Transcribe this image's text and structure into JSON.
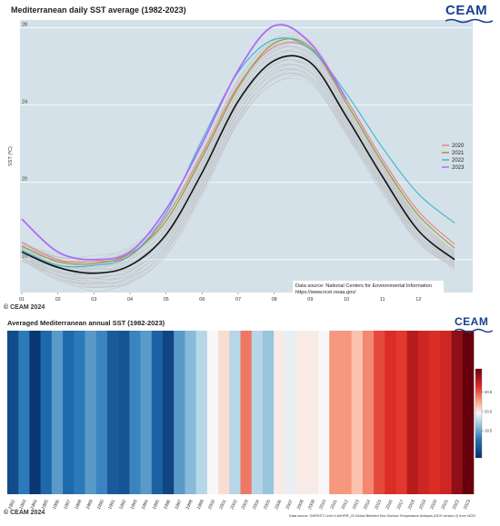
{
  "top_chart": {
    "title": "Mediterranean daily SST average (1982-2023)",
    "logo": "CEAM",
    "copyright": "© CEAM 2024",
    "source_line1": "Data source: National Centers for Environmental Information",
    "source_line2": "https://www.ncei.noaa.gov/"
  },
  "bottom_chart": {
    "title": "Averaged Mediterranean annual SST (1982-2023)",
    "logo": "CEAM",
    "copyright": "© CEAM 2024",
    "source": "Data source: GHRSST Level 4 AVHRR_OI Global Blended Sea Surface Temperature Analysis (GDS version 2) from NCEI"
  },
  "colors": {
    "avg_line": "#111111",
    "clim_lines": "#b8b8b8",
    "plot_bg": "#d4e1e9",
    "frame_bg": "#ffffff"
  },
  "chart_data": [
    {
      "type": "line",
      "title": "Mediterranean daily SST average (1982-2023)",
      "xlabel": "",
      "ylabel": "SST (ºC)",
      "x_ticks": [
        "01",
        "02",
        "03",
        "04",
        "05",
        "06",
        "07",
        "08",
        "09",
        "10",
        "11",
        "12"
      ],
      "y_ticks": [
        16,
        20,
        24,
        28
      ],
      "ylim": [
        14.3,
        28.4
      ],
      "grid": true,
      "legend_position": "right",
      "months": [
        1,
        2,
        3,
        4,
        5,
        6,
        7,
        8,
        9,
        10,
        11,
        12,
        13
      ],
      "series": [
        {
          "name": "",
          "role": "average",
          "color": "#111111",
          "values": [
            16.4,
            15.6,
            15.3,
            15.7,
            17.3,
            20.5,
            24.2,
            26.3,
            26.2,
            23.4,
            20.3,
            17.5,
            16.0
          ]
        },
        {
          "name": "2020",
          "color": "#e6828c",
          "values": [
            16.9,
            16.0,
            15.9,
            16.2,
            18.2,
            21.5,
            25.0,
            27.0,
            26.9,
            24.3,
            21.2,
            18.5,
            16.8
          ]
        },
        {
          "name": "2021",
          "color": "#9a9a28",
          "values": [
            16.7,
            15.9,
            15.8,
            16.3,
            18.0,
            21.3,
            24.9,
            27.2,
            27.0,
            24.1,
            21.0,
            18.3,
            16.6
          ]
        },
        {
          "name": "2022",
          "color": "#3ab4cc",
          "values": [
            16.5,
            15.7,
            15.7,
            16.2,
            18.4,
            22.2,
            25.7,
            27.4,
            26.9,
            24.6,
            21.8,
            19.4,
            17.9
          ]
        },
        {
          "name": "2023",
          "color": "#b06cf5",
          "values": [
            18.1,
            16.4,
            16.0,
            16.4,
            18.6,
            22.0,
            25.8,
            28.1,
            27.2,
            24.3,
            null,
            null,
            null
          ]
        }
      ],
      "climatology_member_count": 36
    },
    {
      "type": "heatmap",
      "title": "Averaged Mediterranean annual SST (1982-2023)",
      "xlabel": "",
      "ylabel": "",
      "categories": [
        "1982",
        "1983",
        "1984",
        "1985",
        "1986",
        "1987",
        "1988",
        "1989",
        "1990",
        "1991",
        "1992",
        "1993",
        "1994",
        "1995",
        "1996",
        "1997",
        "1998",
        "1999",
        "2000",
        "2001",
        "2002",
        "2003",
        "2004",
        "2005",
        "2006",
        "2007",
        "2008",
        "2009",
        "2010",
        "2011",
        "2012",
        "2013",
        "2014",
        "2015",
        "2016",
        "2017",
        "2018",
        "2019",
        "2020",
        "2021",
        "2022",
        "2023"
      ],
      "values": [
        19.0,
        19.3,
        18.85,
        19.2,
        19.45,
        19.2,
        19.3,
        19.45,
        19.35,
        19.1,
        19.05,
        19.35,
        19.45,
        19.15,
        18.95,
        19.45,
        19.6,
        19.75,
        19.95,
        20.05,
        19.75,
        20.4,
        19.75,
        19.65,
        20.0,
        19.9,
        20.0,
        20.0,
        19.95,
        20.3,
        20.3,
        20.15,
        20.35,
        20.55,
        20.65,
        20.6,
        20.8,
        20.7,
        20.65,
        20.7,
        20.95,
        21.1
      ],
      "colorbar_ticks": [
        19.5,
        20.0,
        20.5
      ],
      "colorbar_range": [
        18.8,
        21.1
      ],
      "colorbar_position": "right"
    }
  ]
}
